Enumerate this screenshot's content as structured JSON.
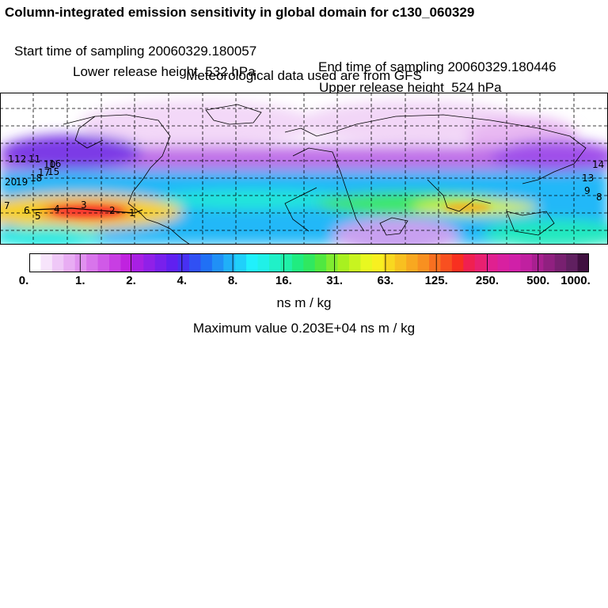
{
  "header": {
    "title": "Column-integrated emission sensitivity in global domain for c130_060329",
    "start_time": "Start time of sampling 20060329.180057",
    "end_time": "End time of sampling 20060329.180446",
    "lower_height": "Lower release height  532 hPa",
    "upper_height": "Upper release height  524 hPa",
    "met_data": "Meteorological data used are from GFS"
  },
  "map": {
    "projection": "global lat-lon, dashed graticule",
    "track_labels": [
      "1",
      "12",
      "11",
      "10",
      "20",
      "19",
      "18",
      "7",
      "6",
      "5",
      "4",
      "3",
      "2",
      "1",
      "17",
      "16",
      "15",
      "14",
      "13",
      "9",
      "8"
    ]
  },
  "colorbar": {
    "tick_labels": [
      "0.",
      "1.",
      "2.",
      "4.",
      "8.",
      "16.",
      "31.",
      "63.",
      "125.",
      "250.",
      "500.",
      "1000."
    ],
    "units": "ns m / kg",
    "colors": [
      "#ffffff",
      "#f7e4fb",
      "#efc8f7",
      "#e8adf3",
      "#e091ef",
      "#d875eb",
      "#d05ae7",
      "#c83ee3",
      "#c023df",
      "#a820e3",
      "#9020e8",
      "#7820ec",
      "#6020f0",
      "#4830f2",
      "#3050f4",
      "#2070f5",
      "#2090f6",
      "#20b0f8",
      "#20d0fa",
      "#20f0fc",
      "#20f0e8",
      "#20f0c8",
      "#20f0a8",
      "#20ec80",
      "#30e860",
      "#50e840",
      "#80ec30",
      "#a8f020",
      "#c8f420",
      "#e8f820",
      "#f8f020",
      "#f8d820",
      "#f8c020",
      "#f8a820",
      "#f89020",
      "#f87020",
      "#f85020",
      "#f83020",
      "#f02050",
      "#e82070",
      "#e02090",
      "#d820a0",
      "#d020a8",
      "#c020a0",
      "#a82090",
      "#902080",
      "#782070",
      "#602060",
      "#401040"
    ]
  },
  "maximum": "Maximum value  0.203E+04 ns m / kg"
}
